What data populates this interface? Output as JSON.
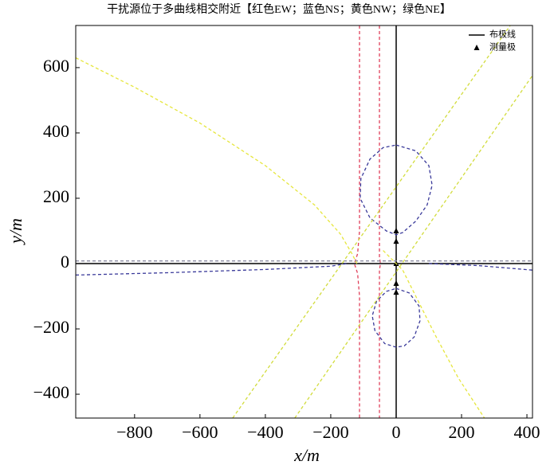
{
  "chart_data": {
    "type": "line",
    "title": "干扰源位于多曲线相交附近【红色EW；蓝色NS；黄色NW；绿色NE】",
    "x_label": "x/m",
    "y_label": "y/m",
    "xlim": [
      -980,
      417
    ],
    "ylim": [
      -473,
      729
    ],
    "xticks": [
      {
        "value": -800,
        "label": "−800"
      },
      {
        "value": -600,
        "label": "−600"
      },
      {
        "value": -400,
        "label": "−400"
      },
      {
        "value": -200,
        "label": "−200"
      },
      0,
      200,
      400
    ],
    "yticks": [
      {
        "value": -400,
        "label": "−400"
      },
      {
        "value": -200,
        "label": "−200"
      },
      0,
      200,
      400,
      600
    ],
    "legend": "upper right",
    "series": [
      {
        "name": "布极线",
        "color": "#000000",
        "style": "solid",
        "x": [
          -980,
          417,
          null,
          0,
          0
        ],
        "y": [
          0,
          0,
          null,
          -473,
          729
        ]
      },
      {
        "name": "测量极",
        "color": "#000000",
        "marker": "triangle",
        "x": [
          0,
          0,
          0,
          0,
          0
        ],
        "y": [
          100,
          68,
          0,
          -61,
          -88
        ]
      },
      {
        "color": "#e0405a",
        "style": "dashed",
        "x": [
          -112,
          -112,
          -118,
          -128,
          -118,
          -112,
          -112
        ],
        "y": [
          729,
          100,
          30,
          0,
          -30,
          -100,
          -473
        ]
      },
      {
        "color": "#e0405a",
        "style": "dashed",
        "x": [
          -51,
          -51,
          -48,
          -51,
          -51
        ],
        "y": [
          729,
          20,
          0,
          -20,
          -473
        ]
      },
      {
        "color": "#3a3a9a",
        "style": "dashed",
        "x": [
          0,
          60,
          100,
          110,
          95,
          60,
          20,
          0,
          -30,
          -80,
          -110,
          -108,
          -80,
          -40,
          0
        ],
        "y": [
          363,
          345,
          300,
          240,
          180,
          130,
          95,
          88,
          100,
          140,
          200,
          260,
          320,
          355,
          363
        ]
      },
      {
        "color": "#3a3a9a",
        "style": "dashed",
        "x": [
          0,
          40,
          70,
          73,
          55,
          25,
          0,
          -35,
          -65,
          -73,
          -60,
          -30,
          0
        ],
        "y": [
          -76,
          -90,
          -130,
          -175,
          -225,
          -252,
          -256,
          -245,
          -205,
          -160,
          -115,
          -85,
          -76
        ]
      },
      {
        "color": "#3a3a9a",
        "style": "dashed",
        "x": [
          -980,
          -700,
          -400,
          -200,
          -150,
          null,
          100,
          250,
          417
        ],
        "y": [
          -35,
          -28,
          -18,
          -8,
          0,
          null,
          0,
          -6,
          -20
        ]
      },
      {
        "color": "#8a8aa0",
        "style": "dashed",
        "x": [
          -980,
          417
        ],
        "y": [
          8,
          8
        ]
      },
      {
        "color": "#e6e63c",
        "style": "dashed",
        "x": [
          -980,
          -800,
          -600,
          -400,
          -250,
          -170,
          -135,
          -120
        ],
        "y": [
          630,
          540,
          430,
          300,
          180,
          90,
          30,
          0
        ]
      },
      {
        "color": "#e6e63c",
        "style": "dashed",
        "x": [
          -40,
          20,
          60,
          120,
          190,
          270
        ],
        "y": [
          40,
          -20,
          -100,
          -220,
          -350,
          -473
        ]
      },
      {
        "color": "#d2dc3c",
        "style": "dashed",
        "x": [
          -500,
          349
        ],
        "y": [
          -473,
          729
        ]
      },
      {
        "color": "#d2dc3c",
        "style": "dashed",
        "x": [
          -310,
          417
        ],
        "y": [
          -473,
          576
        ]
      }
    ]
  }
}
